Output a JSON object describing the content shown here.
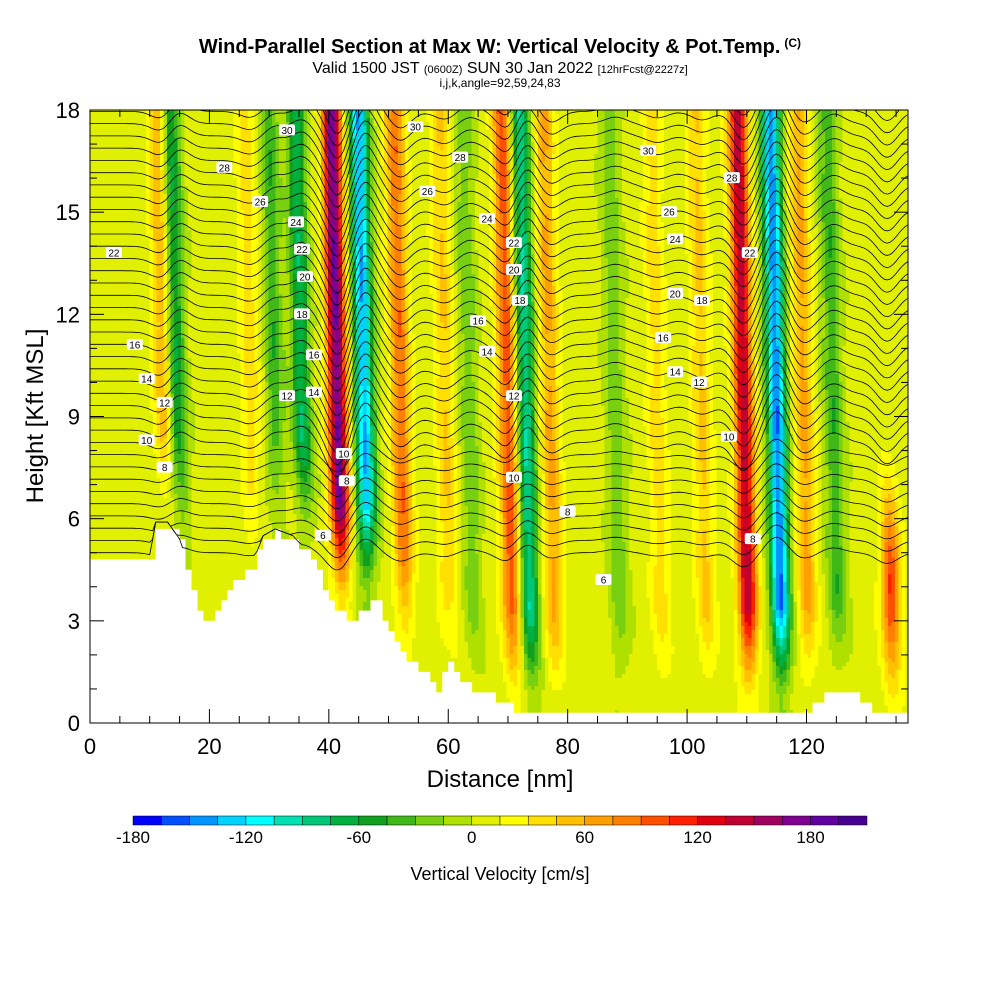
{
  "title": "Wind-Parallel Section at Max W: Vertical Velocity & Pot.Temp.",
  "title_unit": "(C)",
  "subtitle_main": "Valid 1500 JST",
  "subtitle_utc": "(0600Z)",
  "subtitle_date": "SUN 30 Jan 2022",
  "subtitle_fcst": "[12hrFcst@2227z]",
  "subtitle_indices": "i,j,k,angle=92,59,24,83",
  "chart_data": {
    "type": "heatmap",
    "xlabel": "Distance [nm]",
    "ylabel": "Height [Kft MSL]",
    "xlim": [
      0,
      137
    ],
    "ylim": [
      0,
      18
    ],
    "x_ticks": [
      0,
      20,
      40,
      60,
      80,
      100,
      120
    ],
    "y_ticks": [
      0,
      3,
      6,
      9,
      12,
      15,
      18
    ],
    "colorbar": {
      "label": "Vertical Velocity [cm/s]",
      "tick_labels": [
        -180,
        -120,
        -60,
        0,
        60,
        120,
        180
      ],
      "min": -180,
      "max": 210,
      "step": 15,
      "colors": [
        "#0000ff",
        "#0050ff",
        "#0096ff",
        "#00d2ff",
        "#00ffff",
        "#00e0b0",
        "#00c878",
        "#00b040",
        "#10a020",
        "#40b818",
        "#78d010",
        "#b0e000",
        "#e0f000",
        "#ffff00",
        "#ffe000",
        "#ffc000",
        "#ffa000",
        "#ff8000",
        "#ff5000",
        "#ff2000",
        "#e00010",
        "#c00030",
        "#a00060",
        "#800090",
        "#6000a0",
        "#480090"
      ]
    },
    "vertical_velocity_features": [
      {
        "x": 12.5,
        "w": 58
      },
      {
        "x": 14.5,
        "w": -75
      },
      {
        "x": 27,
        "w": 32
      },
      {
        "x": 31,
        "w": -48
      },
      {
        "x": 35.5,
        "w": -78
      },
      {
        "x": 41.5,
        "w": 175
      },
      {
        "x": 46,
        "w": -140
      },
      {
        "x": 52,
        "w": 82
      },
      {
        "x": 59.5,
        "w": 40
      },
      {
        "x": 63.5,
        "w": -32
      },
      {
        "x": 70,
        "w": 95
      },
      {
        "x": 73,
        "w": -98
      },
      {
        "x": 77,
        "w": 58
      },
      {
        "x": 88,
        "w": -32
      },
      {
        "x": 95,
        "w": 32
      },
      {
        "x": 102.5,
        "w": 42
      },
      {
        "x": 109.5,
        "w": 140
      },
      {
        "x": 115,
        "w": -155
      },
      {
        "x": 119.5,
        "w": 58
      },
      {
        "x": 124.5,
        "w": -48
      },
      {
        "x": 133.5,
        "w": 105
      }
    ],
    "theta_contour_labels": [
      {
        "text": "30",
        "x": 33,
        "y": 17.4
      },
      {
        "text": "28",
        "x": 22.5,
        "y": 16.3
      },
      {
        "text": "26",
        "x": 28.5,
        "y": 15.3
      },
      {
        "text": "24",
        "x": 34.5,
        "y": 14.7
      },
      {
        "text": "22",
        "x": 35.5,
        "y": 13.9
      },
      {
        "text": "20",
        "x": 36,
        "y": 13.1
      },
      {
        "text": "18",
        "x": 35.5,
        "y": 12.0
      },
      {
        "text": "16",
        "x": 37.5,
        "y": 10.8
      },
      {
        "text": "14",
        "x": 37.5,
        "y": 9.7
      },
      {
        "text": "12",
        "x": 33,
        "y": 9.6
      },
      {
        "text": "22",
        "x": 4,
        "y": 13.8
      },
      {
        "text": "16",
        "x": 7.5,
        "y": 11.1
      },
      {
        "text": "14",
        "x": 9.5,
        "y": 10.1
      },
      {
        "text": "12",
        "x": 12.5,
        "y": 9.4
      },
      {
        "text": "10",
        "x": 9.5,
        "y": 8.3
      },
      {
        "text": "8",
        "x": 12.5,
        "y": 7.5
      },
      {
        "text": "10",
        "x": 42.5,
        "y": 7.9
      },
      {
        "text": "8",
        "x": 43,
        "y": 7.1
      },
      {
        "text": "6",
        "x": 39,
        "y": 5.5
      },
      {
        "text": "30",
        "x": 54.5,
        "y": 17.5
      },
      {
        "text": "28",
        "x": 62,
        "y": 16.6
      },
      {
        "text": "26",
        "x": 56.5,
        "y": 15.6
      },
      {
        "text": "24",
        "x": 66.5,
        "y": 14.8
      },
      {
        "text": "22",
        "x": 71,
        "y": 14.1
      },
      {
        "text": "20",
        "x": 71,
        "y": 13.3
      },
      {
        "text": "18",
        "x": 72,
        "y": 12.4
      },
      {
        "text": "16",
        "x": 65,
        "y": 11.8
      },
      {
        "text": "14",
        "x": 66.5,
        "y": 10.9
      },
      {
        "text": "12",
        "x": 71,
        "y": 9.6
      },
      {
        "text": "10",
        "x": 71,
        "y": 7.2
      },
      {
        "text": "8",
        "x": 80,
        "y": 6.2
      },
      {
        "text": "6",
        "x": 86,
        "y": 4.2
      },
      {
        "text": "30",
        "x": 93.5,
        "y": 16.8
      },
      {
        "text": "28",
        "x": 107.5,
        "y": 16.0
      },
      {
        "text": "26",
        "x": 97,
        "y": 15.0
      },
      {
        "text": "24",
        "x": 98,
        "y": 14.2
      },
      {
        "text": "22",
        "x": 110.5,
        "y": 13.8
      },
      {
        "text": "20",
        "x": 98,
        "y": 12.6
      },
      {
        "text": "18",
        "x": 102.5,
        "y": 12.4
      },
      {
        "text": "16",
        "x": 96,
        "y": 11.3
      },
      {
        "text": "14",
        "x": 98,
        "y": 10.3
      },
      {
        "text": "12",
        "x": 102,
        "y": 10.0
      },
      {
        "text": "10",
        "x": 107,
        "y": 8.4
      },
      {
        "text": "8",
        "x": 111,
        "y": 5.4
      }
    ]
  }
}
